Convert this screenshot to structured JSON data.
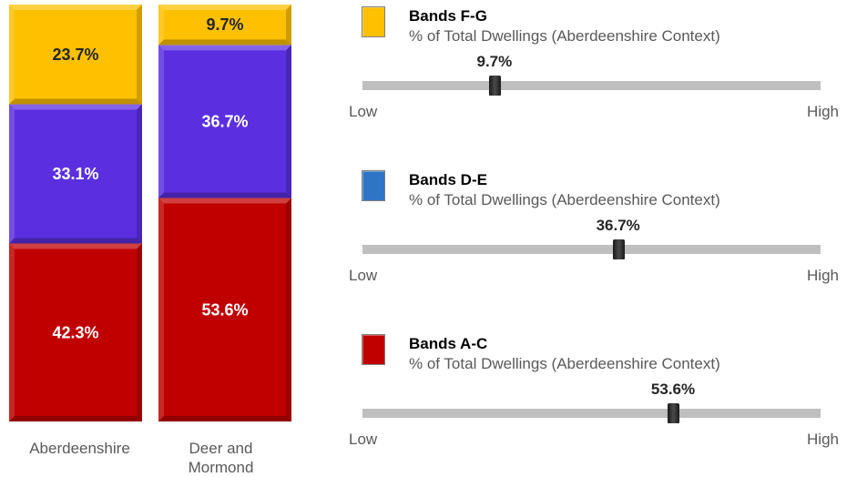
{
  "chart_data": {
    "type": "bar",
    "stacked": true,
    "categories": [
      "Aberdeenshire",
      "Deer and\nMormond"
    ],
    "series": [
      {
        "name": "Bands A-C",
        "values": [
          42.3,
          53.6
        ],
        "labels": [
          "42.3%",
          "53.6%"
        ],
        "color": "#c00000"
      },
      {
        "name": "Bands D-E",
        "values": [
          33.1,
          36.7
        ],
        "labels": [
          "33.1%",
          "36.7%"
        ],
        "color": "#5b2fe0"
      },
      {
        "name": "Bands F-G",
        "values": [
          23.7,
          9.7
        ],
        "labels": [
          "23.7%",
          "9.7%"
        ],
        "color": "#ffc000"
      }
    ],
    "ylim": [
      0,
      100
    ],
    "label_colors": {
      "Bands A-C": "#ffffff",
      "Bands D-E": "#ffffff",
      "Bands F-G": "#262626"
    }
  },
  "categories_display": {
    "aberdeenshire": "Aberdeenshire",
    "deer_line1": "Deer and",
    "deer_line2": "Mormond"
  },
  "indicators": [
    {
      "title": "Bands F-G",
      "subtitle": "% of Total Dwellings (Aberdeenshire Context)",
      "value": 9.7,
      "value_label": "9.7%",
      "position_fraction": 0.288,
      "swatch_color": "#ffc000",
      "low": "Low",
      "high": "High"
    },
    {
      "title": "Bands D-E",
      "subtitle": "% of Total Dwellings (Aberdeenshire Context)",
      "value": 36.7,
      "value_label": "36.7%",
      "position_fraction": 0.558,
      "swatch_color": "#2e75c6",
      "low": "Low",
      "high": "High"
    },
    {
      "title": "Bands A-C",
      "subtitle": "% of Total Dwellings (Aberdeenshire Context)",
      "value": 53.6,
      "value_label": "53.6%",
      "position_fraction": 0.678,
      "swatch_color": "#c00000",
      "low": "Low",
      "high": "High"
    }
  ]
}
